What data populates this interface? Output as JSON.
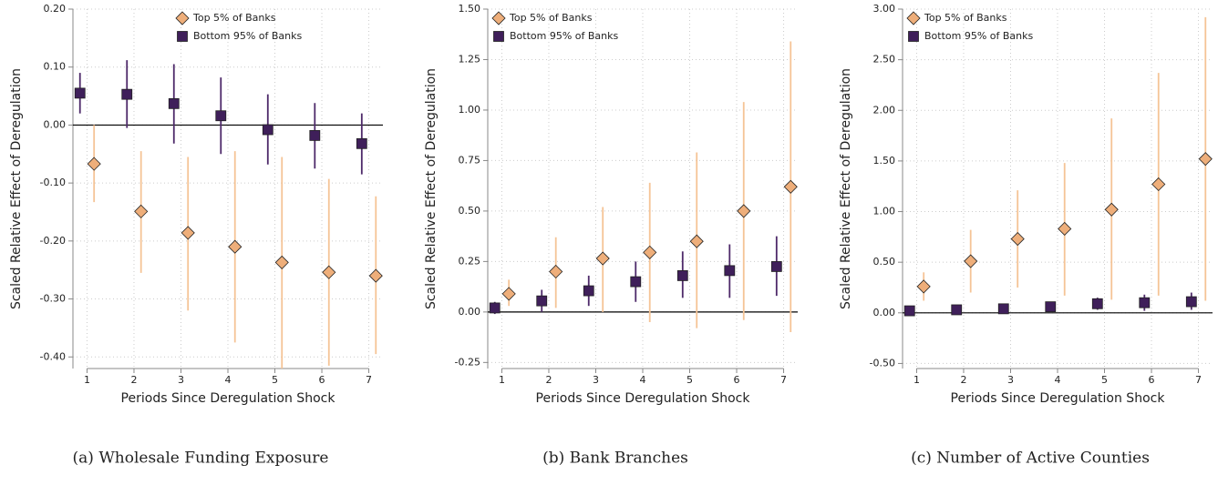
{
  "chart_data": [
    {
      "type": "errorbar",
      "caption": "(a) Wholesale Funding Exposure",
      "xlabel": "Periods Since Deregulation Shock",
      "ylabel": "Scaled Relative Effect of Deregulation",
      "x": [
        1,
        2,
        3,
        4,
        5,
        6,
        7
      ],
      "xlim": [
        0.7,
        7.3
      ],
      "xticks": [
        1,
        2,
        3,
        4,
        5,
        6,
        7
      ],
      "ylim": [
        -0.42,
        0.2
      ],
      "yticks": [
        {
          "value": -0.4,
          "label": "-0.40"
        },
        {
          "value": -0.3,
          "label": "-0.30"
        },
        {
          "value": -0.2,
          "label": "-0.20"
        },
        {
          "value": -0.1,
          "label": "-0.10"
        },
        {
          "value": 0,
          "label": "0.00"
        },
        {
          "value": 0.1,
          "label": "0.10"
        },
        {
          "value": 0.2,
          "label": "0.20"
        }
      ],
      "grid": true,
      "legend": "upper right",
      "series": [
        {
          "name": "Top 5% of Banks",
          "marker": "diamond",
          "color": "#eeae7a",
          "bar_color": "#f5c496",
          "values": [
            -0.067,
            -0.149,
            -0.186,
            -0.21,
            -0.237,
            -0.254,
            -0.26
          ],
          "lower": [
            -0.133,
            -0.255,
            -0.32,
            -0.375,
            -0.42,
            -0.415,
            -0.395
          ],
          "upper": [
            0.0,
            -0.045,
            -0.055,
            -0.045,
            -0.055,
            -0.093,
            -0.123
          ]
        },
        {
          "name": "Bottom 95% of Banks",
          "marker": "square",
          "color": "#3f1f5a",
          "bar_color": "#4e2a6a",
          "values": [
            0.055,
            0.053,
            0.037,
            0.016,
            -0.008,
            -0.018,
            -0.032
          ],
          "lower": [
            0.02,
            -0.005,
            -0.032,
            -0.05,
            -0.068,
            -0.075,
            -0.085
          ],
          "upper": [
            0.09,
            0.112,
            0.105,
            0.082,
            0.053,
            0.038,
            0.02
          ]
        }
      ]
    },
    {
      "type": "errorbar",
      "caption": "(b) Bank Branches",
      "xlabel": "Periods Since Deregulation Shock",
      "ylabel": "Scaled Relative Effect of Deregulation",
      "x": [
        1,
        2,
        3,
        4,
        5,
        6,
        7
      ],
      "xlim": [
        0.7,
        7.3
      ],
      "xticks": [
        1,
        2,
        3,
        4,
        5,
        6,
        7
      ],
      "ylim": [
        -0.28,
        1.5
      ],
      "yticks": [
        {
          "value": -0.25,
          "label": "-0.25"
        },
        {
          "value": 0,
          "label": "0.00"
        },
        {
          "value": 0.25,
          "label": "0.25"
        },
        {
          "value": 0.5,
          "label": "0.50"
        },
        {
          "value": 0.75,
          "label": "0.75"
        },
        {
          "value": 1,
          "label": "1.00"
        },
        {
          "value": 1.25,
          "label": "1.25"
        },
        {
          "value": 1.5,
          "label": "1.50"
        }
      ],
      "grid": true,
      "legend": "upper left",
      "series": [
        {
          "name": "Top 5% of Banks",
          "marker": "diamond",
          "color": "#eeae7a",
          "bar_color": "#f5c496",
          "values": [
            0.09,
            0.2,
            0.265,
            0.295,
            0.35,
            0.5,
            0.62
          ],
          "lower": [
            0.03,
            0.02,
            0.0,
            -0.05,
            -0.08,
            -0.04,
            -0.1
          ],
          "upper": [
            0.16,
            0.37,
            0.52,
            0.64,
            0.79,
            1.04,
            1.34
          ]
        },
        {
          "name": "Bottom 95% of Banks",
          "marker": "square",
          "color": "#3f1f5a",
          "bar_color": "#4e2a6a",
          "values": [
            0.02,
            0.055,
            0.105,
            0.15,
            0.18,
            0.205,
            0.225
          ],
          "lower": [
            -0.01,
            0.0,
            0.03,
            0.05,
            0.07,
            0.07,
            0.08
          ],
          "upper": [
            0.05,
            0.11,
            0.18,
            0.25,
            0.3,
            0.335,
            0.375
          ]
        }
      ]
    },
    {
      "type": "errorbar",
      "caption": "(c) Number of Active Counties",
      "xlabel": "Periods Since Deregulation Shock",
      "ylabel": "Scaled Relative Effect of Deregulation",
      "x": [
        1,
        2,
        3,
        4,
        5,
        6,
        7
      ],
      "xlim": [
        0.7,
        7.3
      ],
      "xticks": [
        1,
        2,
        3,
        4,
        5,
        6,
        7
      ],
      "ylim": [
        -0.55,
        3.0
      ],
      "yticks": [
        {
          "value": -0.5,
          "label": "-0.50"
        },
        {
          "value": 0,
          "label": "0.00"
        },
        {
          "value": 0.5,
          "label": "0.50"
        },
        {
          "value": 1,
          "label": "1.00"
        },
        {
          "value": 1.5,
          "label": "1.50"
        },
        {
          "value": 2,
          "label": "2.00"
        },
        {
          "value": 2.5,
          "label": "2.50"
        },
        {
          "value": 3,
          "label": "3.00"
        }
      ],
      "grid": true,
      "legend": "upper left",
      "series": [
        {
          "name": "Top 5% of Banks",
          "marker": "diamond",
          "color": "#eeae7a",
          "bar_color": "#f5c496",
          "values": [
            0.26,
            0.51,
            0.73,
            0.83,
            1.02,
            1.27,
            1.52
          ],
          "lower": [
            0.12,
            0.2,
            0.25,
            0.17,
            0.13,
            0.17,
            0.12
          ],
          "upper": [
            0.4,
            0.82,
            1.21,
            1.48,
            1.92,
            2.37,
            2.92
          ]
        },
        {
          "name": "Bottom 95% of Banks",
          "marker": "square",
          "color": "#3f1f5a",
          "bar_color": "#4e2a6a",
          "values": [
            0.02,
            0.03,
            0.04,
            0.06,
            0.09,
            0.1,
            0.11
          ],
          "lower": [
            0.0,
            0.01,
            0.02,
            0.02,
            0.03,
            0.02,
            0.03
          ],
          "upper": [
            0.04,
            0.05,
            0.07,
            0.11,
            0.15,
            0.18,
            0.2
          ]
        }
      ]
    }
  ]
}
